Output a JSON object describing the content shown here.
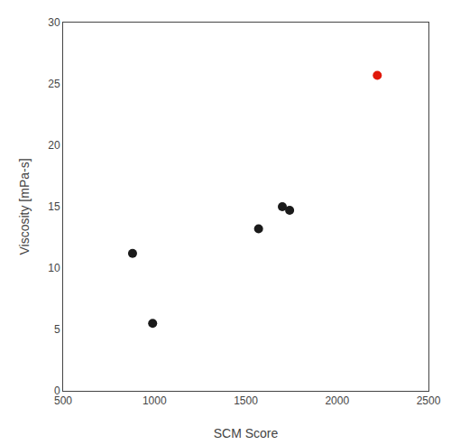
{
  "chart_data": {
    "type": "scatter",
    "xlabel": "SCM Score",
    "ylabel": "Viscosity [mPa-s]",
    "series": [
      {
        "color": "#1a1a1a",
        "x": [
          880,
          990,
          1570,
          1700,
          1740
        ],
        "values": [
          11.2,
          5.5,
          13.2,
          15.0,
          14.7
        ]
      },
      {
        "color": "#e0180a",
        "x": [
          2220
        ],
        "values": [
          25.7
        ]
      }
    ],
    "xlim": [
      500,
      2500
    ],
    "ylim": [
      0,
      30
    ],
    "xticks": [
      500,
      1000,
      1500,
      2000,
      2500
    ],
    "yticks": [
      0,
      5,
      10,
      15,
      20,
      25,
      30
    ],
    "grid": false
  }
}
